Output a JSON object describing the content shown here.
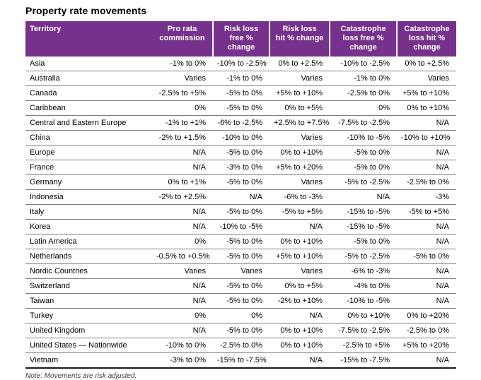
{
  "title": "Property rate movements",
  "note": "Note: Movements are risk adjusted.",
  "colors": {
    "header_bg": "#76318C",
    "header_text": "#FFFFFF",
    "row_divider": "#7F7F7F",
    "bottom_rule": "#1A1A1A"
  },
  "table": {
    "columns": [
      "Territory",
      "Pro rata\ncommission",
      "Risk loss\nfree %\nchange",
      "Risk loss\nhit % change",
      "Catastrophe\nloss free %\nchange",
      "Catastrophe\nloss hit %\nchange"
    ],
    "rows": [
      {
        "territory": "Asia",
        "values": [
          "-1% to 0%",
          "-10% to -2.5%",
          "0% to +2.5%",
          "-10% to -2.5%",
          "0% to +2.5%"
        ]
      },
      {
        "territory": "Australia",
        "values": [
          "Varies",
          "-1% to 0%",
          "Varies",
          "-1% to 0%",
          "Varies"
        ]
      },
      {
        "territory": "Canada",
        "values": [
          "-2.5% to +5%",
          "-5% to 0%",
          "+5% to +10%",
          "-2.5% to 0%",
          "+5% to +10%"
        ]
      },
      {
        "territory": "Caribbean",
        "values": [
          "0%",
          "-5% to 0%",
          "0% to +5%",
          "0%",
          "0% to +10%"
        ]
      },
      {
        "territory": "Central and Eastern Europe",
        "values": [
          "-1% to +1%",
          "-6% to -2.5%",
          "+2.5% to +7.5%",
          "-7.5% to -2.5%",
          "N/A"
        ]
      },
      {
        "territory": "China",
        "values": [
          "-2% to +1.5%",
          "-10% to 0%",
          "Varies",
          "-10% to -5%",
          "-10% to +10%"
        ]
      },
      {
        "territory": "Europe",
        "values": [
          "N/A",
          "-5% to 0%",
          "0% to +10%",
          "-5% to 0%",
          "N/A"
        ]
      },
      {
        "territory": "France",
        "values": [
          "N/A",
          "-3% to 0%",
          "+5% to +20%",
          "-5% to 0%",
          "N/A"
        ]
      },
      {
        "territory": "Germany",
        "values": [
          "0% to +1%",
          "-5% to 0%",
          "Varies",
          "-5% to -2.5%",
          "-2.5% to 0%"
        ]
      },
      {
        "territory": "Indonesia",
        "values": [
          "-2% to +2.5%",
          "N/A",
          "-6% to -3%",
          "N/A",
          "-3%"
        ]
      },
      {
        "territory": "Italy",
        "values": [
          "N/A",
          "-5% to 0%",
          "-5% to +5%",
          "-15% to -5%",
          "-5% to +5%"
        ]
      },
      {
        "territory": "Korea",
        "values": [
          "N/A",
          "-10% to -5%",
          "N/A",
          "-15% to -5%",
          "N/A"
        ]
      },
      {
        "territory": "Latin America",
        "values": [
          "0%",
          "-5% to 0%",
          "0% to +10%",
          "-5% to 0%",
          "N/A"
        ]
      },
      {
        "territory": "Netherlands",
        "values": [
          "-0.5% to +0.5%",
          "-5% to 0%",
          "+5% to +10%",
          "-5% to -2.5%",
          "-5% to 0%"
        ]
      },
      {
        "territory": "Nordic Countries",
        "values": [
          "Varies",
          "Varies",
          "Varies",
          "-6% to -3%",
          "N/A"
        ]
      },
      {
        "territory": "Switzerland",
        "values": [
          "N/A",
          "-5% to 0%",
          "0% to +5%",
          "-4% to 0%",
          "N/A"
        ]
      },
      {
        "territory": "Taiwan",
        "values": [
          "N/A",
          "-5% to 0%",
          "-2% to +10%",
          "-10% to -5%",
          "N/A"
        ]
      },
      {
        "territory": "Turkey",
        "values": [
          "0%",
          "0%",
          "N/A",
          "0% to +10%",
          "0% to +20%"
        ]
      },
      {
        "territory": "United Kingdom",
        "values": [
          "N/A",
          "-5% to 0%",
          "0% to +10%",
          "-7.5% to -2.5%",
          "-2.5% to 0%"
        ]
      },
      {
        "territory": "United States — Nationwide",
        "values": [
          "-10% to 0%",
          "-2.5% to 0%",
          "0% to +10%",
          "-2.5% to +5%",
          "+5% to +20%"
        ]
      },
      {
        "territory": "Vietnam",
        "values": [
          "-3% to 0%",
          "-15% to -7.5%",
          "N/A",
          "-15% to -7.5%",
          "N/A"
        ]
      }
    ]
  }
}
